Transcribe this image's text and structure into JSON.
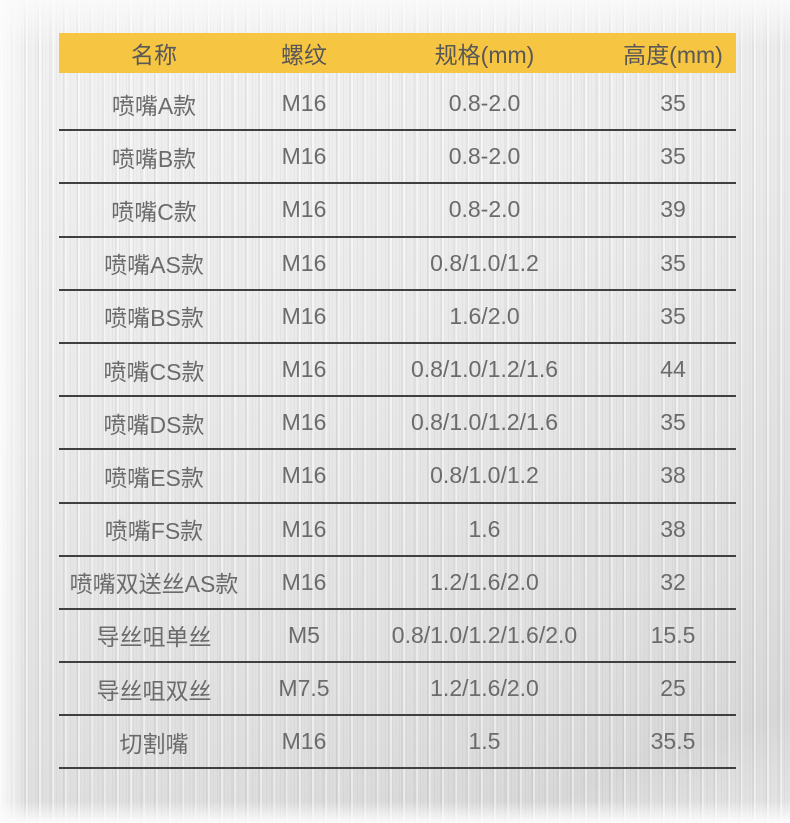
{
  "colors": {
    "header_bg": "#F6C643",
    "header_text": "#595757",
    "body_text": "#6B6B6B",
    "divider": "#404040"
  },
  "table": {
    "header": {
      "name": "名称",
      "thread": "螺纹",
      "spec": "规格(mm)",
      "height": "高度(mm)"
    },
    "rows": [
      {
        "name": "喷嘴A款",
        "thread": "M16",
        "spec": "0.8-2.0",
        "height": "35"
      },
      {
        "name": "喷嘴B款",
        "thread": "M16",
        "spec": "0.8-2.0",
        "height": "35"
      },
      {
        "name": "喷嘴C款",
        "thread": "M16",
        "spec": "0.8-2.0",
        "height": "39"
      },
      {
        "name": "喷嘴AS款",
        "thread": "M16",
        "spec": "0.8/1.0/1.2",
        "height": "35"
      },
      {
        "name": "喷嘴BS款",
        "thread": "M16",
        "spec": "1.6/2.0",
        "height": "35"
      },
      {
        "name": "喷嘴CS款",
        "thread": "M16",
        "spec": "0.8/1.0/1.2/1.6",
        "height": "44"
      },
      {
        "name": "喷嘴DS款",
        "thread": "M16",
        "spec": "0.8/1.0/1.2/1.6",
        "height": "35"
      },
      {
        "name": "喷嘴ES款",
        "thread": "M16",
        "spec": "0.8/1.0/1.2",
        "height": "38"
      },
      {
        "name": "喷嘴FS款",
        "thread": "M16",
        "spec": "1.6",
        "height": "38"
      },
      {
        "name": "喷嘴双送丝AS款",
        "thread": "M16",
        "spec": "1.2/1.6/2.0",
        "height": "32"
      },
      {
        "name": "导丝咀单丝",
        "thread": "M5",
        "spec": "0.8/1.0/1.2/1.6/2.0",
        "height": "15.5"
      },
      {
        "name": "导丝咀双丝",
        "thread": "M7.5",
        "spec": "1.2/1.6/2.0",
        "height": "25"
      },
      {
        "name": "切割嘴",
        "thread": "M16",
        "spec": "1.5",
        "height": "35.5"
      }
    ]
  },
  "chart_data": {
    "type": "table",
    "title": "",
    "columns": [
      "名称",
      "螺纹",
      "规格(mm)",
      "高度(mm)"
    ],
    "rows": [
      [
        "喷嘴A款",
        "M16",
        "0.8-2.0",
        "35"
      ],
      [
        "喷嘴B款",
        "M16",
        "0.8-2.0",
        "35"
      ],
      [
        "喷嘴C款",
        "M16",
        "0.8-2.0",
        "39"
      ],
      [
        "喷嘴AS款",
        "M16",
        "0.8/1.0/1.2",
        "35"
      ],
      [
        "喷嘴BS款",
        "M16",
        "1.6/2.0",
        "35"
      ],
      [
        "喷嘴CS款",
        "M16",
        "0.8/1.0/1.2/1.6",
        "44"
      ],
      [
        "喷嘴DS款",
        "M16",
        "0.8/1.0/1.2/1.6",
        "35"
      ],
      [
        "喷嘴ES款",
        "M16",
        "0.8/1.0/1.2",
        "38"
      ],
      [
        "喷嘴FS款",
        "M16",
        "1.6",
        "38"
      ],
      [
        "喷嘴双送丝AS款",
        "M16",
        "1.2/1.6/2.0",
        "32"
      ],
      [
        "导丝咀单丝",
        "M5",
        "0.8/1.0/1.2/1.6/2.0",
        "15.5"
      ],
      [
        "导丝咀双丝",
        "M7.5",
        "1.2/1.6/2.0",
        "25"
      ],
      [
        "切割嘴",
        "M16",
        "1.5",
        "35.5"
      ]
    ],
    "header_highlight_color": "#F6C643"
  }
}
